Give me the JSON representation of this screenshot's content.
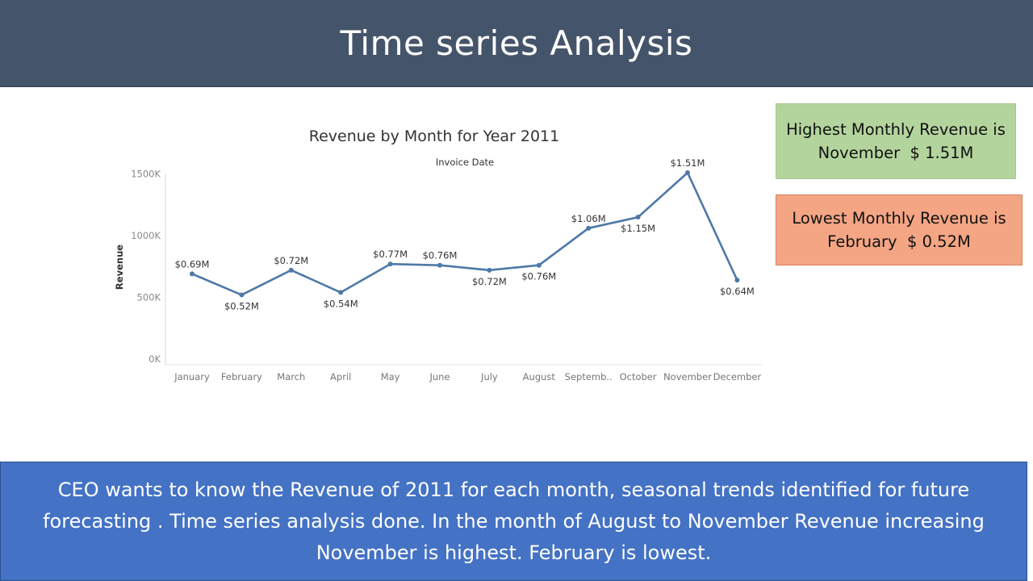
{
  "header": {
    "title": "Time series Analysis"
  },
  "callouts": {
    "highest": {
      "line1": "Highest Monthly Revenue is",
      "line2": "November  $ 1.51M",
      "color": "#b4d49d"
    },
    "lowest": {
      "line1": "Lowest Monthly Revenue is",
      "line2": "February  $ 0.52M",
      "color": "#f4a584"
    }
  },
  "footer": {
    "text": "CEO wants to know the Revenue of 2011 for each month, seasonal trends identified for future forecasting . Time series analysis done. In the month of August to November Revenue increasing November is highest.  February is lowest."
  },
  "chart_data": {
    "type": "line",
    "title": "Revenue by Month for Year 2011",
    "xlabel": "Invoice Date",
    "ylabel": "Revenue",
    "categories": [
      "January",
      "February",
      "March",
      "April",
      "May",
      "June",
      "July",
      "August",
      "Septemb..",
      "October",
      "November",
      "December"
    ],
    "values": [
      690,
      520,
      720,
      540,
      770,
      760,
      720,
      760,
      1060,
      1150,
      1510,
      640
    ],
    "data_labels": [
      "$0.69M",
      "$0.52M",
      "$0.72M",
      "$0.54M",
      "$0.77M",
      "$0.76M",
      "$0.72M",
      "$0.76M",
      "$1.06M",
      "$1.15M",
      "$1.51M",
      "$0.64M"
    ],
    "yticks": [
      0,
      500,
      1000,
      1500
    ],
    "ytick_labels": [
      "0K",
      "500K",
      "1000K",
      "1500K"
    ],
    "ylim": [
      0,
      1550
    ],
    "grid": false,
    "line_color": "#4e79a7"
  }
}
